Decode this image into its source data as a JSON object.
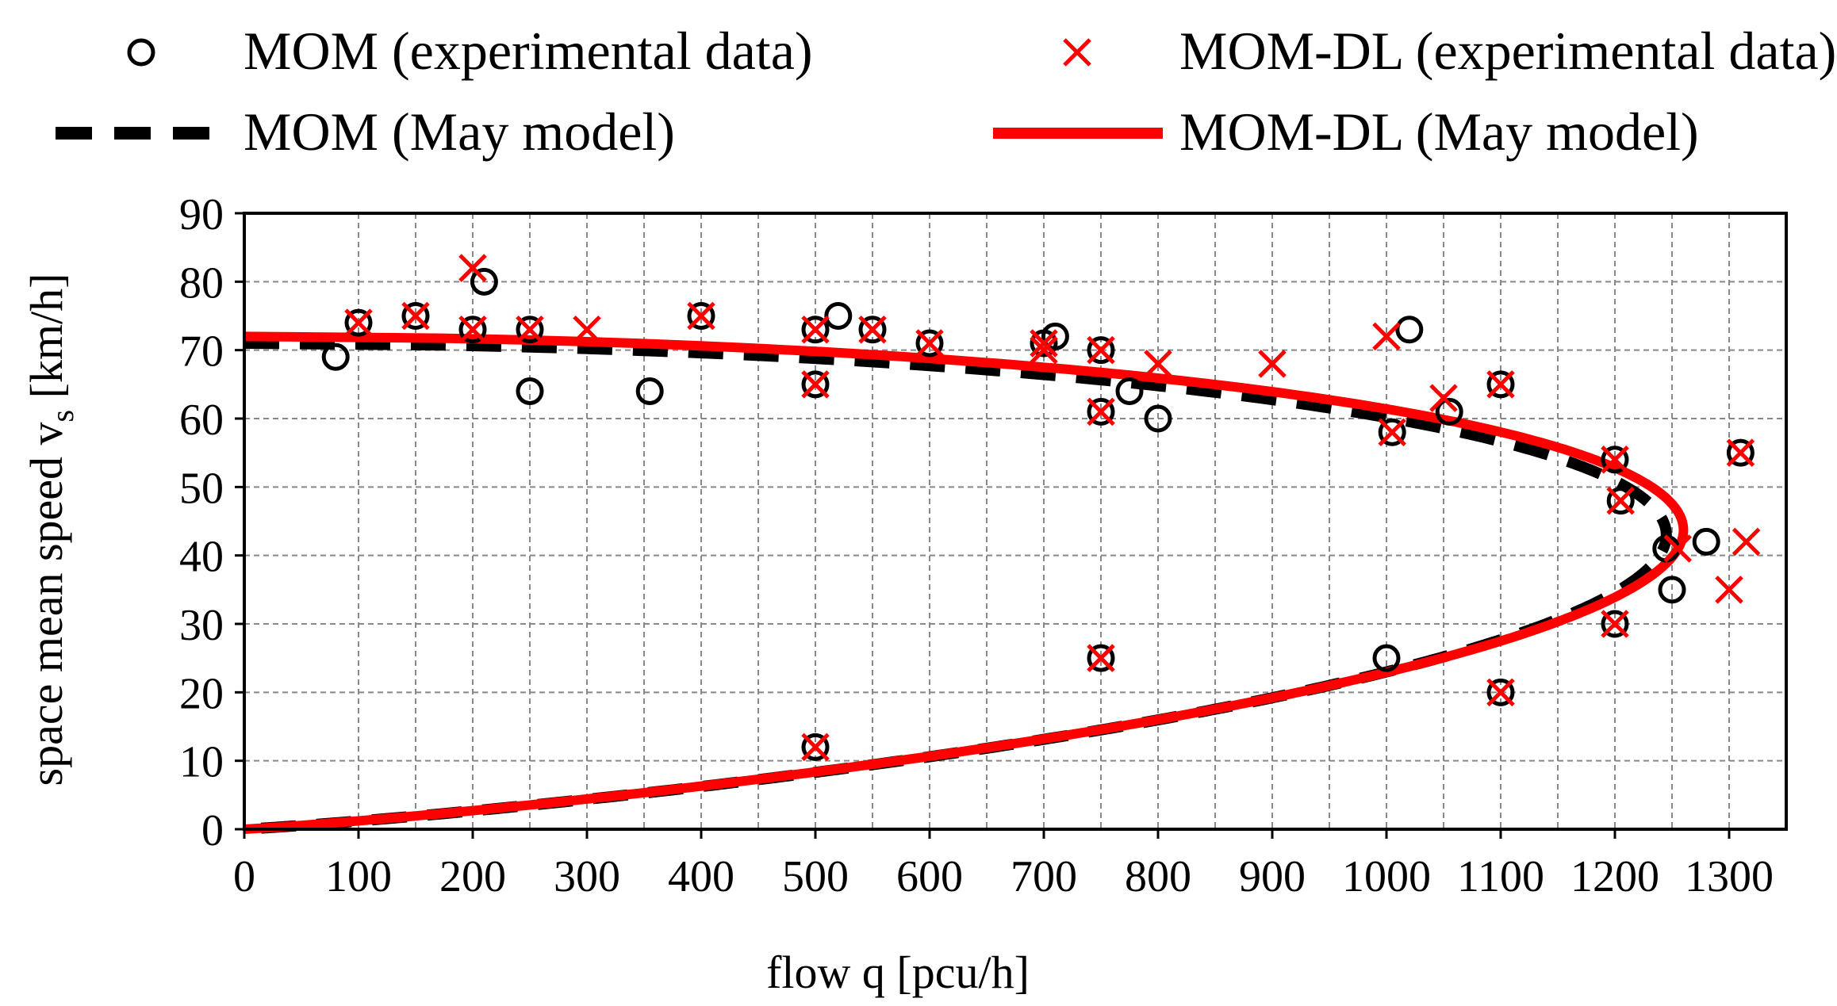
{
  "chart_data": {
    "type": "scatter",
    "title": "",
    "xlabel": "flow q [pcu/h]",
    "ylabel_main": "space mean speed v",
    "ylabel_sub": "s",
    "ylabel_tail": " [km/h]",
    "xlim": [
      0,
      1350
    ],
    "ylim": [
      0,
      90
    ],
    "x_ticks": [
      0,
      100,
      200,
      300,
      400,
      500,
      600,
      700,
      800,
      900,
      1000,
      1100,
      1200,
      1300
    ],
    "x_tick_labels": [
      "0",
      "100",
      "200",
      "300",
      "400",
      "500",
      "600",
      "700",
      "800",
      "900",
      "1000",
      "1100",
      "1200",
      "1300"
    ],
    "y_ticks": [
      0,
      10,
      20,
      30,
      40,
      50,
      60,
      70,
      80,
      90
    ],
    "y_tick_labels": [
      "0",
      "10",
      "20",
      "30",
      "40",
      "50",
      "60",
      "70",
      "80",
      "90"
    ],
    "grid": true,
    "legend_position": "top",
    "colors": {
      "mom": "#000000",
      "momdl": "#ff0000",
      "grid": "#888888"
    },
    "series": [
      {
        "name": "MOM (experimental data)",
        "kind": "scatter",
        "marker": "circle",
        "color": "#000000",
        "points": [
          [
            80,
            69
          ],
          [
            100,
            74
          ],
          [
            150,
            75
          ],
          [
            200,
            73
          ],
          [
            210,
            80
          ],
          [
            250,
            73
          ],
          [
            250,
            64
          ],
          [
            355,
            64
          ],
          [
            400,
            75
          ],
          [
            500,
            73
          ],
          [
            500,
            65
          ],
          [
            500,
            12
          ],
          [
            520,
            75
          ],
          [
            550,
            73
          ],
          [
            600,
            71
          ],
          [
            700,
            71
          ],
          [
            710,
            72
          ],
          [
            750,
            70
          ],
          [
            750,
            61
          ],
          [
            750,
            25
          ],
          [
            775,
            64
          ],
          [
            800,
            60
          ],
          [
            1000,
            25
          ],
          [
            1005,
            58
          ],
          [
            1020,
            73
          ],
          [
            1055,
            61
          ],
          [
            1100,
            65
          ],
          [
            1100,
            20
          ],
          [
            1200,
            54
          ],
          [
            1200,
            30
          ],
          [
            1205,
            48
          ],
          [
            1245,
            41
          ],
          [
            1250,
            35
          ],
          [
            1280,
            42
          ],
          [
            1310,
            55
          ]
        ]
      },
      {
        "name": "MOM-DL (experimental data)",
        "kind": "scatter",
        "marker": "x",
        "color": "#ff0000",
        "points": [
          [
            100,
            74
          ],
          [
            150,
            75
          ],
          [
            200,
            82
          ],
          [
            200,
            73
          ],
          [
            250,
            73
          ],
          [
            300,
            73
          ],
          [
            400,
            75
          ],
          [
            500,
            73
          ],
          [
            500,
            65
          ],
          [
            500,
            12
          ],
          [
            550,
            73
          ],
          [
            600,
            71
          ],
          [
            700,
            71
          ],
          [
            700,
            70
          ],
          [
            750,
            70
          ],
          [
            750,
            61
          ],
          [
            750,
            25
          ],
          [
            800,
            68
          ],
          [
            900,
            68
          ],
          [
            1000,
            72
          ],
          [
            1005,
            58
          ],
          [
            1050,
            63
          ],
          [
            1100,
            65
          ],
          [
            1100,
            20
          ],
          [
            1200,
            54
          ],
          [
            1200,
            30
          ],
          [
            1205,
            48
          ],
          [
            1255,
            41
          ],
          [
            1300,
            35
          ],
          [
            1310,
            55
          ],
          [
            1315,
            42
          ]
        ]
      },
      {
        "name": "MOM (May model)",
        "kind": "line",
        "style": "dashed",
        "color": "#000000",
        "free_flow_speed": 71,
        "critical_speed": 43,
        "capacity": 1245
      },
      {
        "name": "MOM-DL (May model)",
        "kind": "line",
        "style": "solid",
        "color": "#ff0000",
        "free_flow_speed": 72,
        "critical_speed": 43.7,
        "capacity": 1260
      }
    ]
  }
}
